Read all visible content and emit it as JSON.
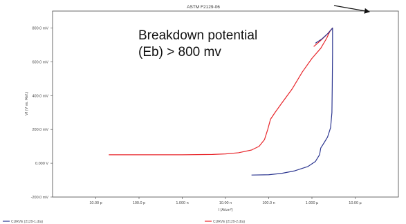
{
  "chart_data": {
    "type": "line",
    "title": "ASTM F2129-06",
    "xlabel": "I (A/cm²)",
    "ylabel": "Vf (V vs. Ref.)",
    "x_scale": "log",
    "xlim": [
      1e-12,
      0.0001
    ],
    "ylim": [
      -200,
      900
    ],
    "x_ticks": [
      "10.00 p",
      "100.0 p",
      "1.000 n",
      "10.00 n",
      "100.0 n",
      "1.000 µ",
      "10.00 µ"
    ],
    "y_ticks": [
      "-200.0 mV",
      "0.000 V",
      "200.0 mV",
      "400.0 mV",
      "600.0 mV",
      "800.0 mV"
    ],
    "grid": false,
    "series": [
      {
        "name": "CURVE (2129-1.dta)",
        "color": "#e8262b",
        "points": [
          [
            2e-11,
            50
          ],
          [
            5e-11,
            50
          ],
          [
            2e-10,
            50
          ],
          [
            1e-09,
            50
          ],
          [
            5e-09,
            52
          ],
          [
            1e-08,
            55
          ],
          [
            2e-08,
            62
          ],
          [
            4e-08,
            78
          ],
          [
            6e-08,
            100
          ],
          [
            8e-08,
            140
          ],
          [
            9.5e-08,
            200
          ],
          [
            1.1e-07,
            260
          ],
          [
            1.4e-07,
            300
          ],
          [
            2e-07,
            355
          ],
          [
            3.5e-07,
            440
          ],
          [
            6e-07,
            540
          ],
          [
            1e-06,
            620
          ],
          [
            1.6e-06,
            680
          ],
          [
            2.2e-06,
            740
          ],
          [
            2.6e-06,
            780
          ],
          [
            3e-06,
            800
          ],
          [
            2.2e-06,
            760
          ],
          [
            1.5e-06,
            720
          ],
          [
            1.1e-06,
            690
          ]
        ]
      },
      {
        "name": "CURVE (2129-2.dta)",
        "color": "#2c3690",
        "points": [
          [
            4e-08,
            -70
          ],
          [
            1e-07,
            -68
          ],
          [
            2e-07,
            -60
          ],
          [
            4e-07,
            -45
          ],
          [
            8e-07,
            -20
          ],
          [
            1.2e-06,
            10
          ],
          [
            1.5e-06,
            50
          ],
          [
            1.6e-06,
            90
          ],
          [
            1.9e-06,
            120
          ],
          [
            2.3e-06,
            155
          ],
          [
            2.7e-06,
            210
          ],
          [
            2.9e-06,
            300
          ],
          [
            2.95e-06,
            450
          ],
          [
            3e-06,
            650
          ],
          [
            3e-06,
            800
          ],
          [
            2.4e-06,
            770
          ],
          [
            1.7e-06,
            735
          ],
          [
            1.2e-06,
            710
          ]
        ]
      }
    ],
    "annotations": [
      {
        "text_lines": [
          "Breakdown potential",
          "(Eb) > 800 mv"
        ]
      }
    ],
    "legend_placement": "bottom"
  }
}
